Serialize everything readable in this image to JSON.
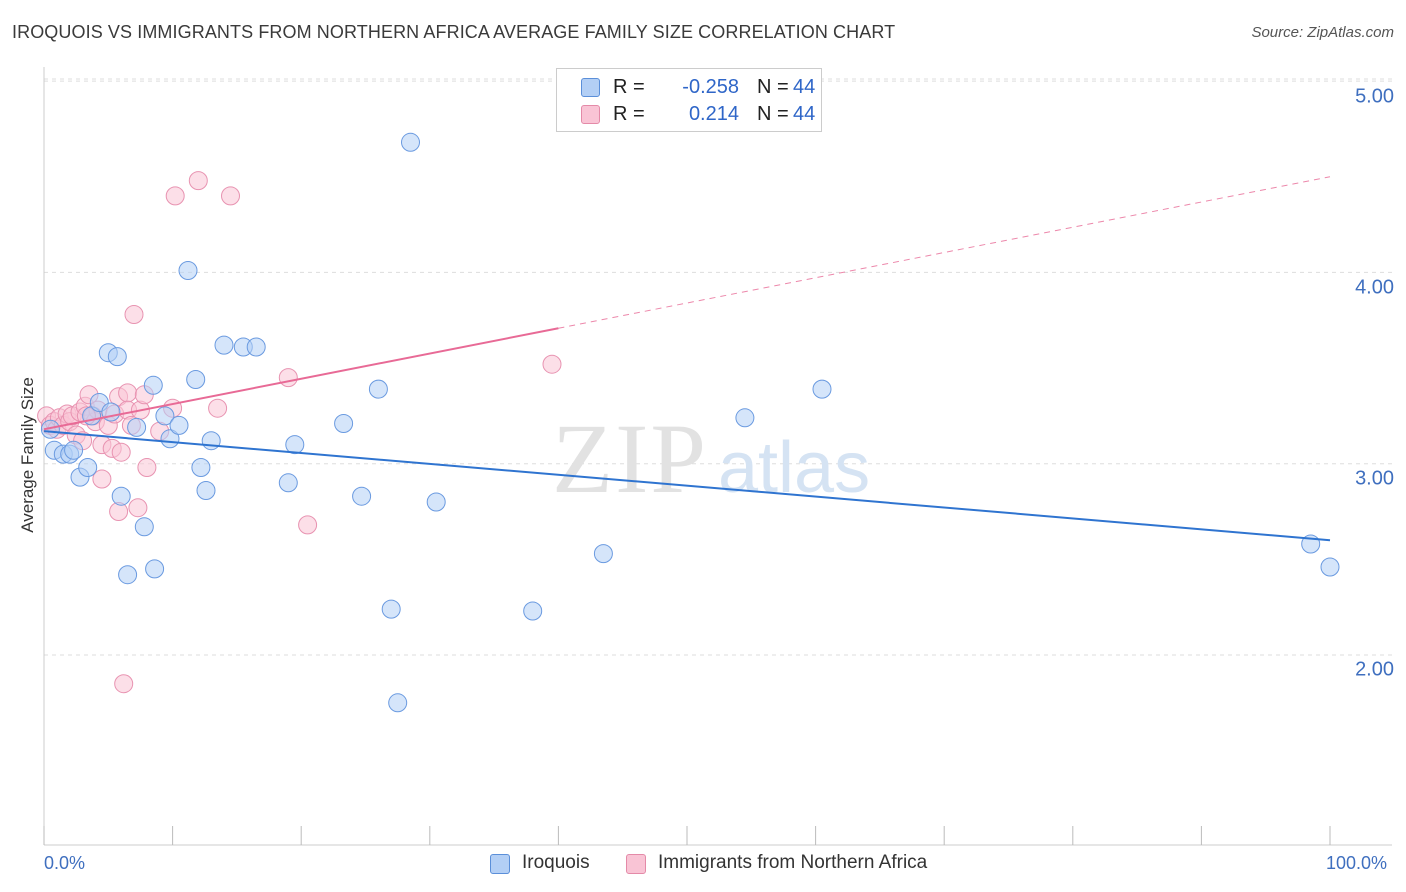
{
  "header": {
    "title": "IROQUOIS VS IMMIGRANTS FROM NORTHERN AFRICA AVERAGE FAMILY SIZE CORRELATION CHART",
    "source": "Source: ZipAtlas.com"
  },
  "watermark": {
    "zip": "ZIP",
    "atlas": "atlas"
  },
  "legend": {
    "r_label": "R =",
    "n_label": "N =",
    "rows": [
      {
        "name": "Iroquois",
        "r": "-0.258",
        "n": "44",
        "fill": "#b3cff5",
        "stroke": "#5b8fd9"
      },
      {
        "name": "Immigrants from Northern Africa",
        "r": "0.214",
        "n": "44",
        "fill": "#f9c4d5",
        "stroke": "#e48aa8"
      }
    ]
  },
  "axes": {
    "x_min_label": "0.0%",
    "x_max_label": "100.0%",
    "y_label": "Average Family Size",
    "y_ticks": [
      "5.00",
      "4.00",
      "3.00",
      "2.00"
    ]
  },
  "colors": {
    "blue_line": "#2f74d0",
    "pink_line": "#e86a96",
    "blue_fill": "#b3cff5",
    "blue_stroke": "#6a9ae0",
    "pink_fill": "#f9c4d5",
    "pink_stroke": "#e893b1",
    "grid": "#dddddd"
  },
  "chart_data": {
    "type": "scatter",
    "title": "IROQUOIS VS IMMIGRANTS FROM NORTHERN AFRICA AVERAGE FAMILY SIZE CORRELATION CHART",
    "xlabel": "",
    "ylabel": "Average Family Size",
    "xlim": [
      0,
      100
    ],
    "ylim": [
      1.0,
      5.15
    ],
    "y_ticks": [
      2.0,
      3.0,
      4.0,
      5.0
    ],
    "grid": true,
    "series": [
      {
        "name": "Iroquois",
        "r": -0.258,
        "n": 44,
        "trend": {
          "x0": 0,
          "y0": 3.17,
          "x1": 100,
          "y1": 2.6,
          "dashed_from": null
        },
        "points": [
          [
            0.5,
            3.18
          ],
          [
            0.8,
            3.07
          ],
          [
            1.5,
            3.05
          ],
          [
            2.0,
            3.05
          ],
          [
            2.3,
            3.07
          ],
          [
            2.8,
            2.93
          ],
          [
            3.4,
            2.98
          ],
          [
            3.7,
            3.25
          ],
          [
            4.3,
            3.32
          ],
          [
            5.2,
            3.27
          ],
          [
            5.0,
            3.58
          ],
          [
            5.7,
            3.56
          ],
          [
            6.0,
            2.83
          ],
          [
            6.5,
            2.42
          ],
          [
            7.2,
            3.19
          ],
          [
            7.8,
            2.67
          ],
          [
            8.5,
            3.41
          ],
          [
            8.6,
            2.45
          ],
          [
            9.4,
            3.25
          ],
          [
            9.8,
            3.13
          ],
          [
            10.5,
            3.2
          ],
          [
            11.2,
            4.01
          ],
          [
            11.8,
            3.44
          ],
          [
            12.2,
            2.98
          ],
          [
            12.6,
            2.86
          ],
          [
            13.0,
            3.12
          ],
          [
            14.0,
            3.62
          ],
          [
            15.5,
            3.61
          ],
          [
            16.5,
            3.61
          ],
          [
            19.0,
            2.9
          ],
          [
            19.5,
            3.1
          ],
          [
            23.3,
            3.21
          ],
          [
            24.7,
            2.83
          ],
          [
            26.0,
            3.39
          ],
          [
            27.0,
            2.24
          ],
          [
            27.5,
            1.75
          ],
          [
            28.5,
            4.68
          ],
          [
            30.5,
            2.8
          ],
          [
            38.0,
            2.23
          ],
          [
            43.5,
            2.53
          ],
          [
            54.5,
            3.24
          ],
          [
            60.5,
            3.39
          ],
          [
            98.5,
            2.58
          ],
          [
            100.0,
            2.46
          ]
        ]
      },
      {
        "name": "Immigrants from Northern Africa",
        "r": 0.214,
        "n": 44,
        "trend": {
          "x0": 0,
          "y0": 3.18,
          "x1": 100,
          "y1": 4.5,
          "dashed_from": 40
        },
        "points": [
          [
            0.2,
            3.25
          ],
          [
            0.5,
            3.2
          ],
          [
            0.8,
            3.22
          ],
          [
            1.0,
            3.18
          ],
          [
            1.2,
            3.24
          ],
          [
            1.5,
            3.2
          ],
          [
            1.8,
            3.26
          ],
          [
            2.0,
            3.22
          ],
          [
            2.2,
            3.25
          ],
          [
            2.5,
            3.15
          ],
          [
            2.8,
            3.27
          ],
          [
            3.0,
            3.12
          ],
          [
            3.2,
            3.3
          ],
          [
            3.5,
            3.36
          ],
          [
            3.8,
            3.25
          ],
          [
            4.0,
            3.22
          ],
          [
            4.2,
            3.28
          ],
          [
            4.5,
            3.1
          ],
          [
            4.5,
            2.92
          ],
          [
            5.0,
            3.2
          ],
          [
            5.3,
            3.08
          ],
          [
            5.5,
            3.26
          ],
          [
            5.8,
            3.35
          ],
          [
            5.8,
            2.75
          ],
          [
            6.0,
            3.06
          ],
          [
            6.2,
            1.85
          ],
          [
            6.5,
            3.37
          ],
          [
            6.5,
            3.28
          ],
          [
            6.8,
            3.2
          ],
          [
            7.0,
            3.78
          ],
          [
            7.3,
            2.77
          ],
          [
            7.5,
            3.28
          ],
          [
            7.8,
            3.36
          ],
          [
            8.0,
            2.98
          ],
          [
            9.0,
            3.17
          ],
          [
            10.0,
            3.29
          ],
          [
            10.2,
            4.4
          ],
          [
            12.0,
            4.48
          ],
          [
            13.5,
            3.29
          ],
          [
            14.5,
            4.4
          ],
          [
            19.0,
            3.45
          ],
          [
            20.5,
            2.68
          ],
          [
            39.5,
            3.52
          ],
          [
            3.3,
            3.25
          ]
        ]
      }
    ]
  }
}
